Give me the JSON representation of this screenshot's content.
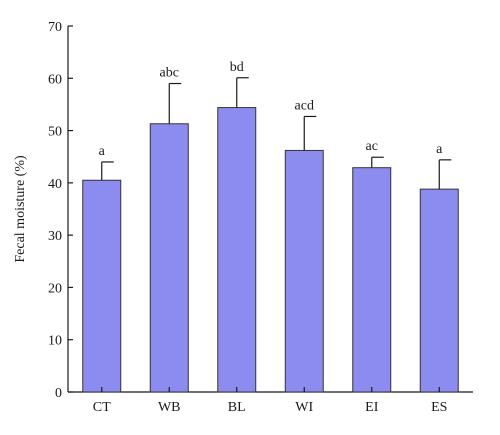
{
  "chart_data": {
    "type": "bar",
    "title": "",
    "xlabel": "",
    "ylabel": "Fecal moisture (%)",
    "ylim": [
      0,
      70
    ],
    "yticks": [
      0,
      10,
      20,
      30,
      40,
      50,
      60,
      70
    ],
    "categories": [
      "CT",
      "WB",
      "BL",
      "WI",
      "EI",
      "ES"
    ],
    "values": [
      40.5,
      51.3,
      54.4,
      46.2,
      42.9,
      38.8
    ],
    "error_upper": [
      3.5,
      7.7,
      5.7,
      6.5,
      2.0,
      5.6
    ],
    "significance_labels": [
      "a",
      "abc",
      "bd",
      "acd",
      "ac",
      "a"
    ],
    "bar_color": "#8c8cf0",
    "bar_edge_color": "#333333",
    "grid": false,
    "legend": "none"
  }
}
